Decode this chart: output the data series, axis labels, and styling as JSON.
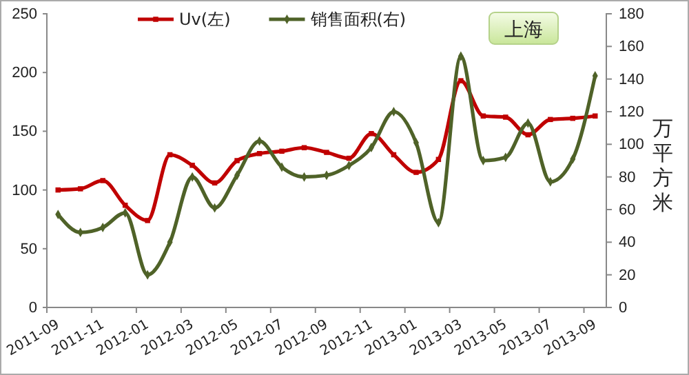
{
  "chart_data": {
    "type": "line",
    "categories": [
      "2011-09",
      null,
      "2011-11",
      null,
      "2012-01",
      null,
      "2012-03",
      null,
      "2012-05",
      null,
      "2012-07",
      null,
      "2012-09",
      null,
      "2012-11",
      null,
      "2013-01",
      null,
      "2013-03",
      null,
      "2013-05",
      null,
      "2013-07",
      null,
      "2013-09"
    ],
    "series": [
      {
        "name": "Uv(左)",
        "color": "#c00000",
        "marker": "square",
        "values": [
          100,
          101,
          108,
          87,
          74,
          130,
          121,
          106,
          125,
          131,
          133,
          136,
          132,
          127,
          148,
          130,
          115,
          126,
          193,
          163,
          162,
          147,
          160,
          161,
          163
        ]
      },
      {
        "name": "销售面积(右)",
        "color": "#4f6228",
        "marker": "diamond",
        "axis": "y2",
        "values": [
          57,
          46,
          49,
          58,
          20,
          40,
          80,
          61,
          81,
          102,
          86,
          80,
          81,
          87,
          98,
          120,
          101,
          52,
          154,
          90,
          92,
          113,
          77,
          91,
          142
        ]
      }
    ],
    "ylim": [
      0,
      250
    ],
    "yticks": [
      0,
      50,
      100,
      150,
      200,
      250
    ],
    "y2lim": [
      0,
      180
    ],
    "y2ticks": [
      0,
      20,
      40,
      60,
      80,
      100,
      120,
      140,
      160,
      180
    ],
    "y2label": "万平方米",
    "annotations": [
      "上海"
    ],
    "legend": "top",
    "grid": false
  }
}
